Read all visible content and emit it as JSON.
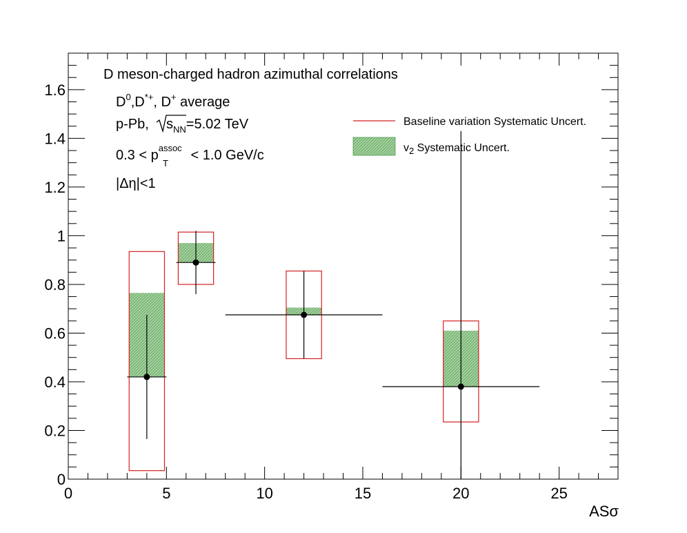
{
  "chart_data": {
    "type": "scatter",
    "title": "D meson-charged hadron azimuthal correlations",
    "xlabel": "ASσ",
    "ylabel": "",
    "xlim": [
      0,
      28
    ],
    "ylim": [
      0,
      1.75
    ],
    "xticks": [
      0,
      5,
      10,
      15,
      20,
      25
    ],
    "xtick_labels": [
      "0",
      "5",
      "10",
      "15",
      "20",
      "25"
    ],
    "yticks": [
      0,
      0.2,
      0.4,
      0.6,
      0.8,
      1.0,
      1.2,
      1.4,
      1.6
    ],
    "ytick_labels": [
      "0",
      "0.2",
      "0.4",
      "0.6",
      "0.8",
      "1",
      "1.2",
      "1.4",
      "1.6"
    ],
    "grid": false,
    "legend_position": "top-right",
    "annotations": {
      "species": {
        "a": "D",
        "a_sup": "0",
        "b": ",D",
        "b_sup": "*+",
        "c": ", D",
        "c_sup": "+",
        "d": " average"
      },
      "system": {
        "pre": "p-Pb, ",
        "root": "s",
        "root_sub": "NN",
        "post": "=5.02 TeV"
      },
      "pt": {
        "pre": "0.3 < p",
        "sup": "assoc",
        "sub": "T",
        "post": " < 1.0 GeV/c"
      },
      "eta": "|Δη|<1"
    },
    "legend": {
      "baseline": "Baseline variation Systematic Uncert.",
      "v2_pre": "v",
      "v2_sub": "2",
      "v2_post": " Systematic Uncert."
    },
    "points": [
      {
        "x": 4,
        "y": 0.42,
        "x_low": 3,
        "x_high": 5,
        "y_err_low": 0.255,
        "y_err_high": 0.255,
        "baseline_sys": [
          0.035,
          0.935
        ],
        "v2_sys": [
          0.42,
          0.765
        ],
        "box_x": [
          3.1,
          4.9
        ]
      },
      {
        "x": 6.5,
        "y": 0.89,
        "x_low": 5.5,
        "x_high": 7.5,
        "y_err_low": 0.13,
        "y_err_high": 0.13,
        "baseline_sys": [
          0.8,
          1.015
        ],
        "v2_sys": [
          0.89,
          0.97
        ],
        "box_x": [
          5.6,
          7.4
        ]
      },
      {
        "x": 12,
        "y": 0.675,
        "x_low": 8,
        "x_high": 16,
        "y_err_low": 0.18,
        "y_err_high": 0.18,
        "baseline_sys": [
          0.495,
          0.855
        ],
        "v2_sys": [
          0.675,
          0.705
        ],
        "box_x": [
          11.1,
          12.9
        ]
      },
      {
        "x": 20,
        "y": 0.38,
        "x_low": 16,
        "x_high": 24,
        "y_err_low": 0.38,
        "y_err_high": 1.05,
        "baseline_sys": [
          0.235,
          0.65
        ],
        "v2_sys": [
          0.38,
          0.61
        ],
        "box_x": [
          19.1,
          20.9
        ]
      }
    ],
    "colors": {
      "baseline": "#d42020",
      "v2_fill": "#4e9a4e",
      "v2_fill_light": "#a9d3a3",
      "marker": "#000000",
      "axis": "#000000"
    }
  }
}
